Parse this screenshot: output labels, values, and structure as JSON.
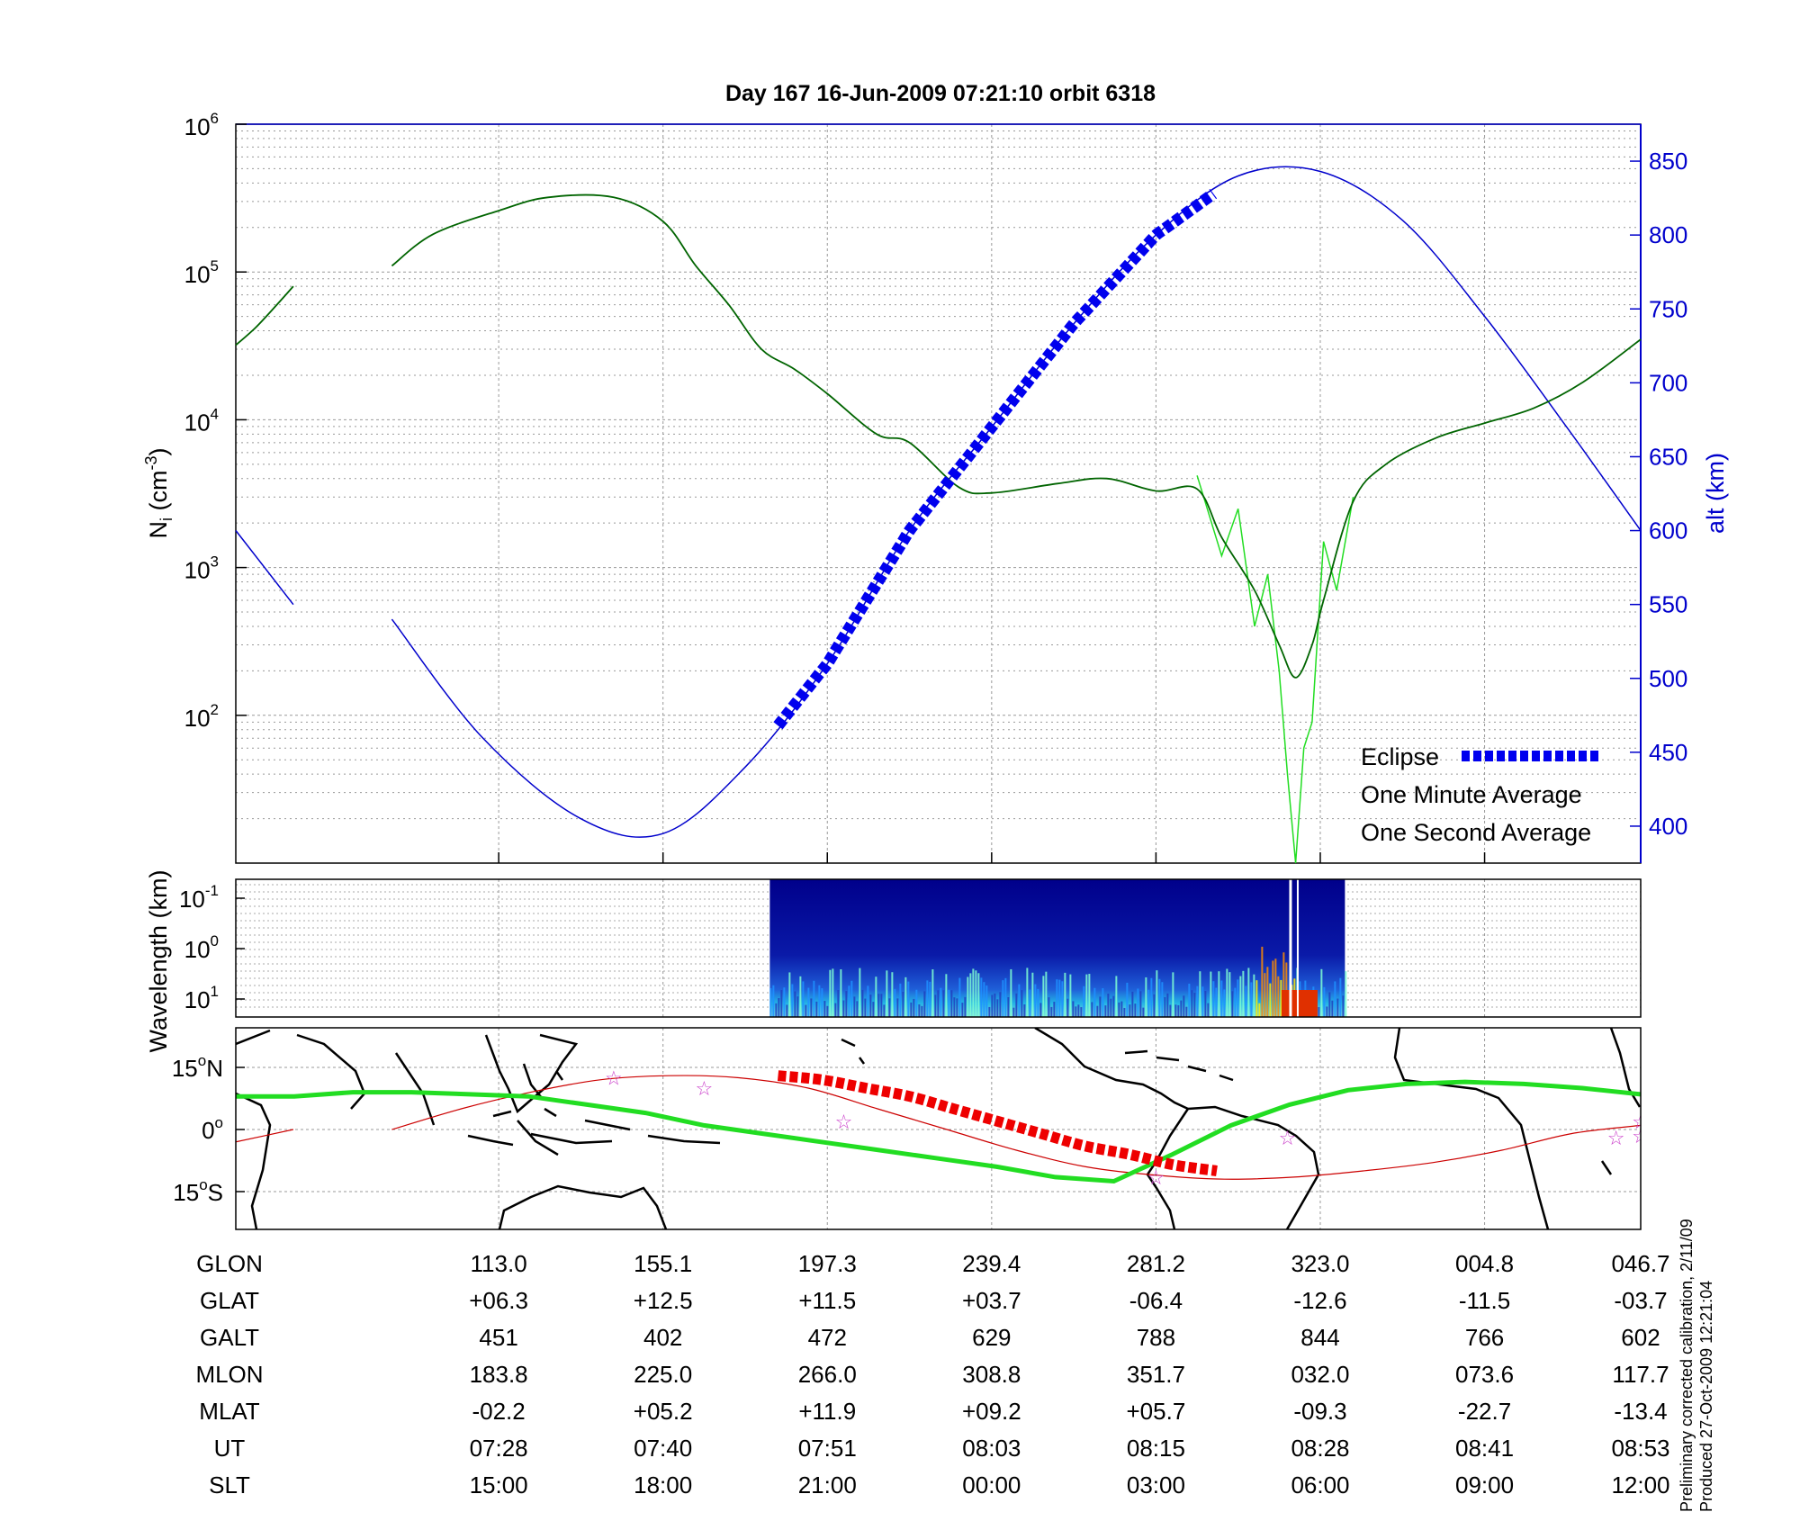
{
  "title": "Day 167  16-Jun-2009 07:21:10   orbit 6318",
  "colors": {
    "alt": "#0000cc",
    "ni_avg": "#006400",
    "ni_1s": "#22dd22",
    "eclipse": "#0000ee",
    "track": "#22dd22",
    "eclipse_track": "#ee0000",
    "mag_eq": "#cc0000",
    "stars": "#cc44cc"
  },
  "chart_data": [
    {
      "type": "line",
      "name": "density-altitude",
      "ylabel": "N",
      "ylabel_sub": "i",
      "ylabel_rest": " (cm",
      "ylabel_exp": "-3",
      "ylabel_close": ")",
      "y_scale": "log",
      "ylim": [
        10,
        1000000
      ],
      "y_ticks": [
        {
          "base": "10",
          "exp": "6",
          "v": 1000000
        },
        {
          "base": "10",
          "exp": "5",
          "v": 100000
        },
        {
          "base": "10",
          "exp": "4",
          "v": 10000
        },
        {
          "base": "10",
          "exp": "3",
          "v": 1000
        },
        {
          "base": "10",
          "exp": "2",
          "v": 100
        }
      ],
      "y2label": "alt (km)",
      "y2lim": [
        375,
        875
      ],
      "y2_ticks": [
        "400",
        "450",
        "500",
        "550",
        "600",
        "650",
        "700",
        "750",
        "800",
        "850"
      ],
      "xlim": [
        0,
        8.55
      ],
      "x_ticks_index": [
        1.6,
        2.6,
        3.6,
        4.6,
        5.6,
        6.6,
        7.6,
        8.55
      ],
      "series": [
        {
          "name": "alt",
          "axis": "right",
          "segments": [
            {
              "x": [
                0.0,
                0.35
              ],
              "y": [
                600,
                550
              ]
            },
            {
              "x": [
                0.95,
                1.5,
                2.1,
                2.6,
                3.1,
                3.6,
                4.1,
                4.6,
                5.1,
                5.6,
                6.1,
                6.6,
                7.1,
                7.6,
                8.1,
                8.55
              ],
              "y": [
                540,
                460,
                405,
                395,
                440,
                510,
                600,
                670,
                740,
                800,
                840,
                843,
                810,
                745,
                670,
                600
              ]
            }
          ]
        },
        {
          "name": "One Minute Average",
          "axis": "left",
          "segments": [
            {
              "x": [
                0.0,
                0.12,
                0.25,
                0.35
              ],
              "y": [
                32000,
                42000,
                60000,
                80000
              ]
            },
            {
              "x": [
                0.95,
                1.2,
                1.6,
                1.9,
                2.3,
                2.6,
                2.8,
                3.0,
                3.2,
                3.4,
                3.6,
                3.9,
                4.1,
                4.4,
                4.6,
                5.0,
                5.3,
                5.6,
                5.85,
                6.0,
                6.2,
                6.35,
                6.45,
                6.55,
                6.62,
                6.8,
                7.0,
                7.3,
                7.6,
                7.9,
                8.2,
                8.55
              ],
              "y": [
                110000,
                180000,
                260000,
                320000,
                320000,
                220000,
                110000,
                60000,
                30000,
                22000,
                15000,
                8000,
                7000,
                3500,
                3200,
                3700,
                4000,
                3300,
                3400,
                1600,
                700,
                300,
                180,
                300,
                600,
                2800,
                5000,
                7500,
                9500,
                12000,
                18000,
                35000
              ]
            }
          ]
        },
        {
          "name": "One Second Average",
          "axis": "left",
          "segments": [
            {
              "x": [
                5.85,
                6.0,
                6.1,
                6.2,
                6.28,
                6.35,
                6.4,
                6.45,
                6.5,
                6.55,
                6.62,
                6.7,
                6.8
              ],
              "y": [
                4200,
                1200,
                2500,
                400,
                900,
                200,
                40,
                10,
                60,
                90,
                1500,
                700,
                3000
              ]
            }
          ]
        },
        {
          "name": "Eclipse",
          "axis": "right",
          "x_range": [
            3.3,
            5.97
          ],
          "marker": "thick-dotted"
        }
      ],
      "legend": [
        {
          "label": "Eclipse",
          "color": "#0000ee"
        },
        {
          "label": "One Minute Average",
          "color": "#000000"
        },
        {
          "label": "One Second Average",
          "color": "#22dd22"
        }
      ]
    },
    {
      "type": "heatmap",
      "name": "wavelength-spectrogram",
      "ylabel": "Wavelength (km)",
      "y_scale": "log",
      "y_ticks": [
        {
          "base": "10",
          "exp": "-1"
        },
        {
          "base": "10",
          "exp": "0"
        },
        {
          "base": "10",
          "exp": "1"
        }
      ],
      "x_range": [
        3.25,
        6.75
      ],
      "hot_spot_x": [
        6.2,
        6.45
      ]
    },
    {
      "type": "map",
      "name": "ground-track",
      "y_ticks": [
        {
          "label": "15",
          "unit": "N"
        },
        {
          "label": "0",
          "unit": ""
        },
        {
          "label": "15",
          "unit": "S"
        }
      ],
      "track_lat": [
        8,
        8,
        9,
        9,
        8.5,
        8,
        6,
        4,
        1,
        -1,
        -3,
        -5,
        -7,
        -9,
        -11.5,
        -12.5,
        -6,
        1,
        6,
        9.5,
        11,
        11.5,
        11,
        10,
        8.5
      ],
      "mag_eq_lat": [
        -3,
        0
      ],
      "mag_eq_lat2": [
        0,
        5,
        9,
        12,
        13,
        12.5,
        10,
        5,
        0,
        -5,
        -9,
        -11,
        -12,
        -11.5,
        -10,
        -8,
        -5,
        -1,
        1
      ],
      "eclipse_track_lat": [
        13,
        12,
        10,
        8,
        5,
        2,
        -1,
        -4,
        -6,
        -8.5,
        -10
      ],
      "stars": [
        [
          2.3,
          12.5
        ],
        [
          2.85,
          10
        ],
        [
          3.7,
          2
        ],
        [
          5.6,
          -11.5
        ],
        [
          6.4,
          -2
        ],
        [
          8.4,
          -2
        ],
        [
          8.55,
          2
        ],
        [
          8.55,
          -1.5
        ]
      ]
    }
  ],
  "table": {
    "row_labels": [
      "GLON",
      "GLAT",
      "GALT",
      "MLON",
      "MLAT",
      "UT",
      "SLT"
    ],
    "columns": [
      [
        "113.0",
        "+06.3",
        "451",
        "183.8",
        "-02.2",
        "07:28",
        "15:00"
      ],
      [
        "155.1",
        "+12.5",
        "402",
        "225.0",
        "+05.2",
        "07:40",
        "18:00"
      ],
      [
        "197.3",
        "+11.5",
        "472",
        "266.0",
        "+11.9",
        "07:51",
        "21:00"
      ],
      [
        "239.4",
        "+03.7",
        "629",
        "308.8",
        "+09.2",
        "08:03",
        "00:00"
      ],
      [
        "281.2",
        "-06.4",
        "788",
        "351.7",
        "+05.7",
        "08:15",
        "03:00"
      ],
      [
        "323.0",
        "-12.6",
        "844",
        "032.0",
        "-09.3",
        "08:28",
        "06:00"
      ],
      [
        "004.8",
        "-11.5",
        "766",
        "073.6",
        "-22.7",
        "08:41",
        "09:00"
      ],
      [
        "046.7",
        "-03.7",
        "602",
        "117.7",
        "-13.4",
        "08:53",
        "12:00"
      ]
    ]
  },
  "footer": {
    "line1": "Preliminary corrected calibration, 2/11/09",
    "line2": "Produced 27-Oct-2009 12:21:04"
  }
}
